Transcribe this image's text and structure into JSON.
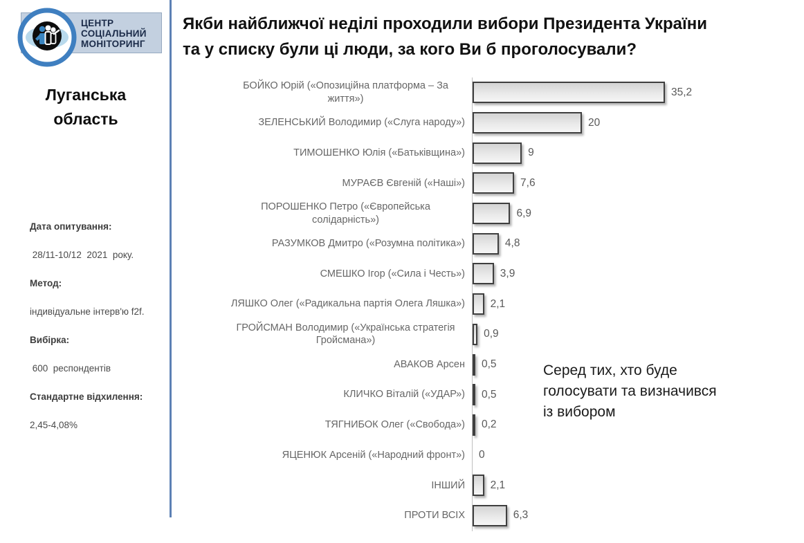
{
  "header": {
    "title_lines": [
      "Якби найближчої неділі проходили вибори Президента України",
      "та у списку були ці люди, за кого Ви б проголосували?"
    ]
  },
  "sidebar": {
    "logo": {
      "icon": "people-eye-emblem-icon",
      "lines": [
        "ЦЕНТР",
        "СОЦІАЛЬНИЙ",
        "МОНІТОРИНГ"
      ]
    },
    "region": "Луганська область",
    "survey_info": [
      {
        "label": "Дата опитування:",
        "value": " 28/11-10/12  2021  року."
      },
      {
        "label": "Метод:",
        "value": "індивідуальне інтерв'ю f2f."
      },
      {
        "label": "Вибірка:",
        "value": " 600  респондентів"
      },
      {
        "label": "Стандартне відхилення:",
        "value": "2,45-4,08%"
      }
    ]
  },
  "annotation": {
    "lines": [
      "Серед тих, хто буде",
      "голосувати та визначився",
      "із вибором"
    ]
  },
  "chart_data": {
    "type": "bar",
    "orientation": "horizontal",
    "title": "Якби найближчої неділі проходили вибори Президента України та у списку були ці люди, за кого Ви б проголосували?",
    "categories": [
      "БОЙКО Юрій («Опозиційна платформа – За життя»)",
      "ЗЕЛЕНСЬКИЙ Володимир («Слуга народу»)",
      "ТИМОШЕНКО Юлія («Батьківщина»)",
      "МУРАЄВ Євгеній («Наші»)",
      "ПОРОШЕНКО Петро («Європейська солідарність»)",
      "РАЗУМКОВ Дмитро («Розумна політика»)",
      "СМЕШКО Ігор («Сила і Честь»)",
      "ЛЯШКО Олег («Радикальна партія Олега Ляшка»)",
      "ГРОЙСМАН Володимир («Українська стратегія Гройсмана»)",
      "АВАКОВ Арсен",
      "КЛИЧКО Віталій («УДАР»)",
      "ТЯГНИБОК Олег («Свобода»)",
      "ЯЦЕНЮК Арсеній («Народний фронт»)",
      "ІНШИЙ",
      "ПРОТИ ВСІХ"
    ],
    "values": [
      35.2,
      20,
      9,
      7.6,
      6.9,
      4.8,
      3.9,
      2.1,
      0.9,
      0.5,
      0.5,
      0.2,
      0,
      2.1,
      6.3
    ],
    "value_labels": [
      "35,2",
      "20",
      "9",
      "7,6",
      "6,9",
      "4,8",
      "3,9",
      "2,1",
      "0,9",
      "0,5",
      "0,5",
      "0,2",
      "0",
      "2,1",
      "6,3"
    ],
    "xlabel": "",
    "ylabel": "",
    "xlim": [
      0,
      40
    ],
    "grid": false,
    "legend": false,
    "data_labels": true
  },
  "colors": {
    "divider_blue": "#5C80B4",
    "banner_bg": "#C3D0E0",
    "banner_border": "#96A9C0",
    "banner_text": "#1B2B49",
    "logo_ring": "#3F7FC0",
    "logo_eye": "#B8D9EC",
    "bar_border": "#3F3F3F",
    "bar_fill_top": "#D4D4D4",
    "bar_fill_mid": "#E9E9E9",
    "bar_fill_bottom": "#F5F5F5",
    "label_gray": "#666666",
    "value_gray": "#595959",
    "title_black": "#111111",
    "axis_gray": "#BFBFBF"
  }
}
